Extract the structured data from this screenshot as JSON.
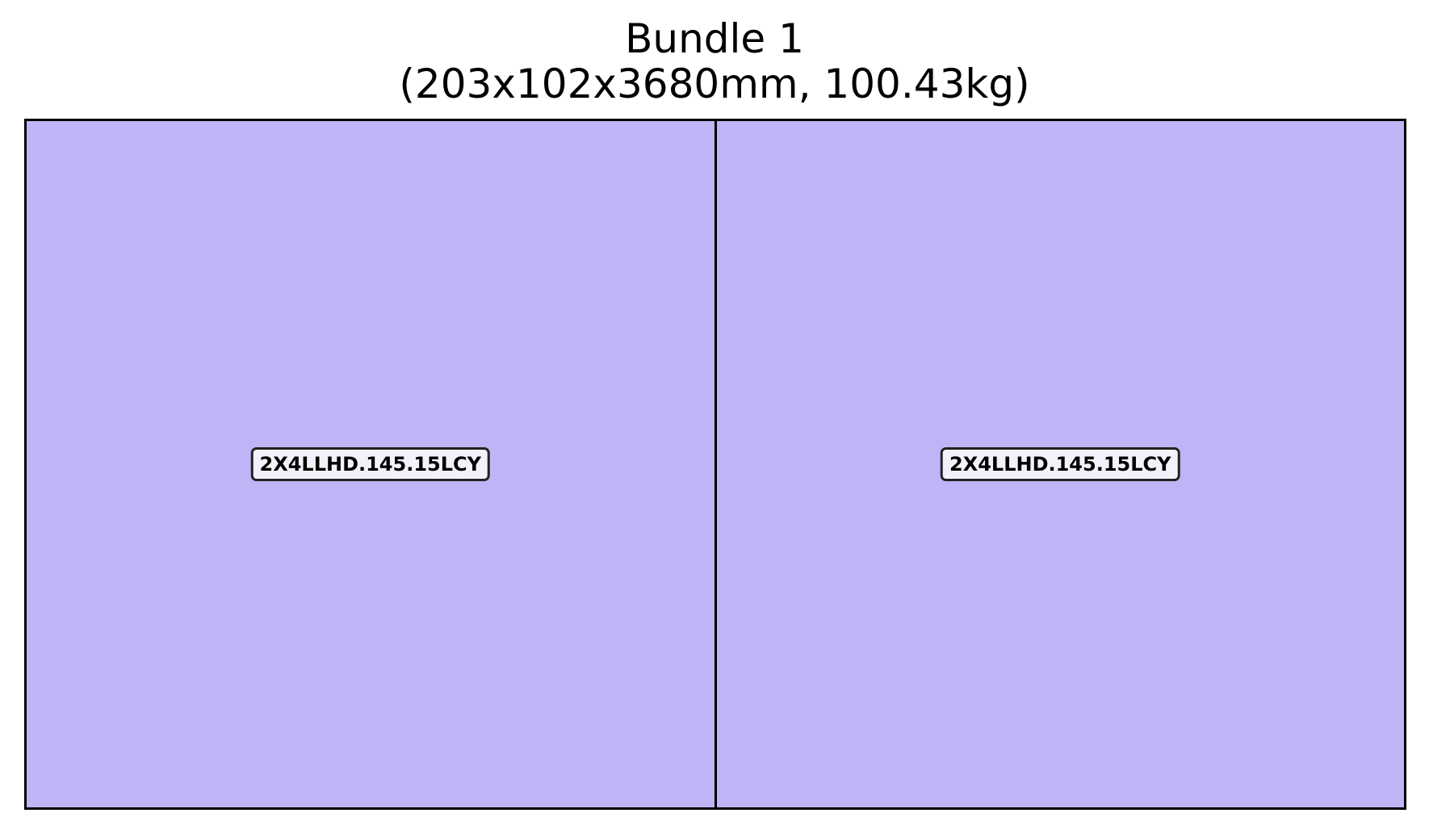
{
  "diagram": {
    "title": "Bundle 1",
    "subtitle": "(203x102x3680mm, 100.43kg)",
    "fill_color": "#bdb5f6",
    "edge_color": "#000000",
    "label_background": "#f2f2fb",
    "pieces": [
      {
        "label": "2X4LLHD.145.15LCY"
      },
      {
        "label": "2X4LLHD.145.15LCY"
      }
    ]
  }
}
